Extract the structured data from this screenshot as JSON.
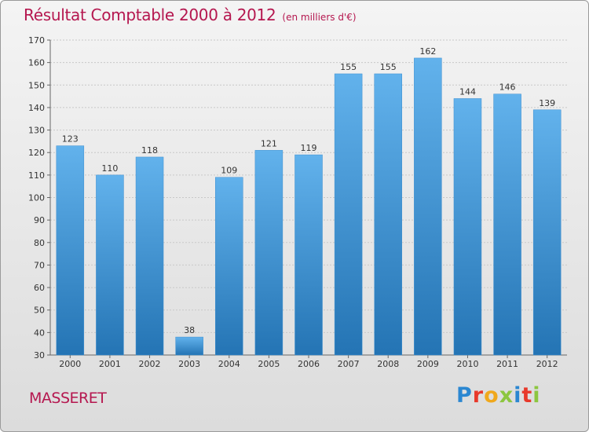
{
  "header": {
    "title": "Résultat Comptable 2000 à 2012",
    "subtitle": "(en milliers d'€)"
  },
  "footer": {
    "commune": "MASSERET",
    "logo_text": "Proxiti"
  },
  "colors": {
    "title": "#b5174f",
    "bar_top": "#62b2ec",
    "bar_bottom": "#2474b4",
    "grid": "#c8c8c8",
    "logo": [
      "#2b87d1",
      "#e8392b",
      "#f0a81c",
      "#8cc63f",
      "#2b87d1",
      "#e8392b",
      "#8cc63f"
    ]
  },
  "chart_data": {
    "type": "bar",
    "title": "Résultat Comptable 2000 à 2012",
    "subtitle": "(en milliers d'€)",
    "categories": [
      "2000",
      "2001",
      "2002",
      "2003",
      "2004",
      "2005",
      "2006",
      "2007",
      "2008",
      "2009",
      "2010",
      "2011",
      "2012"
    ],
    "values": [
      123,
      110,
      118,
      38,
      109,
      121,
      119,
      155,
      155,
      162,
      144,
      146,
      139
    ],
    "xlabel": "",
    "ylabel": "",
    "ylim": [
      30,
      170
    ],
    "yticks": [
      30,
      40,
      50,
      60,
      70,
      80,
      90,
      100,
      110,
      120,
      130,
      140,
      150,
      160,
      170
    ],
    "grid": true,
    "data_labels": true
  }
}
